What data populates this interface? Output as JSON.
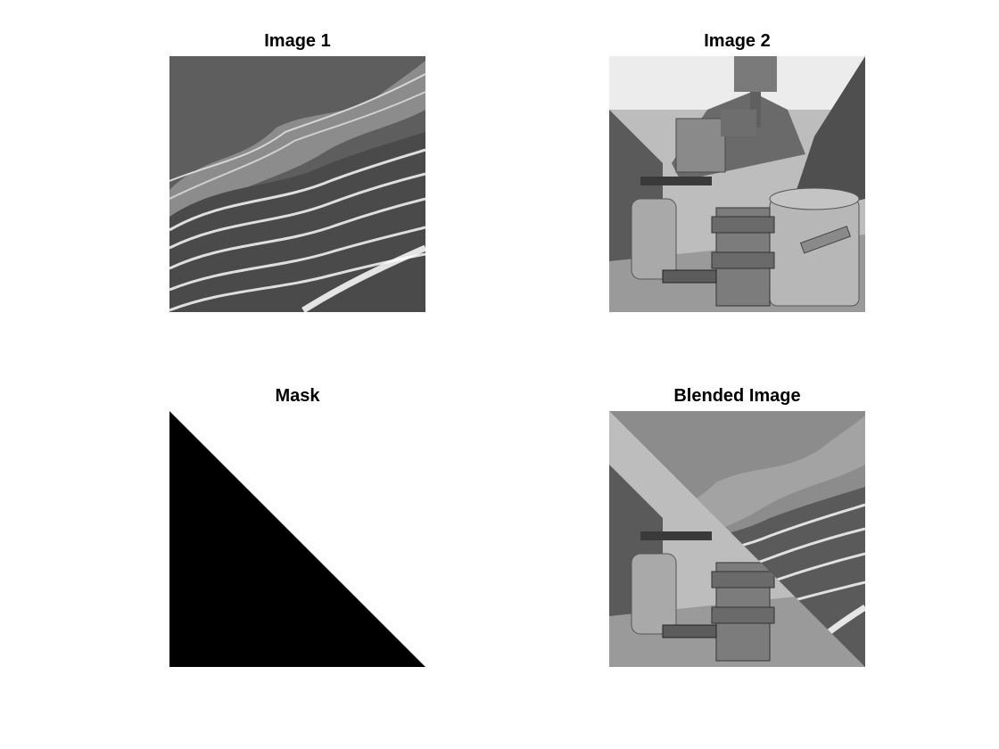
{
  "figure": {
    "panels": [
      {
        "title": "Image 1"
      },
      {
        "title": "Image 2"
      },
      {
        "title": "Mask"
      },
      {
        "title": "Blended Image"
      }
    ]
  }
}
